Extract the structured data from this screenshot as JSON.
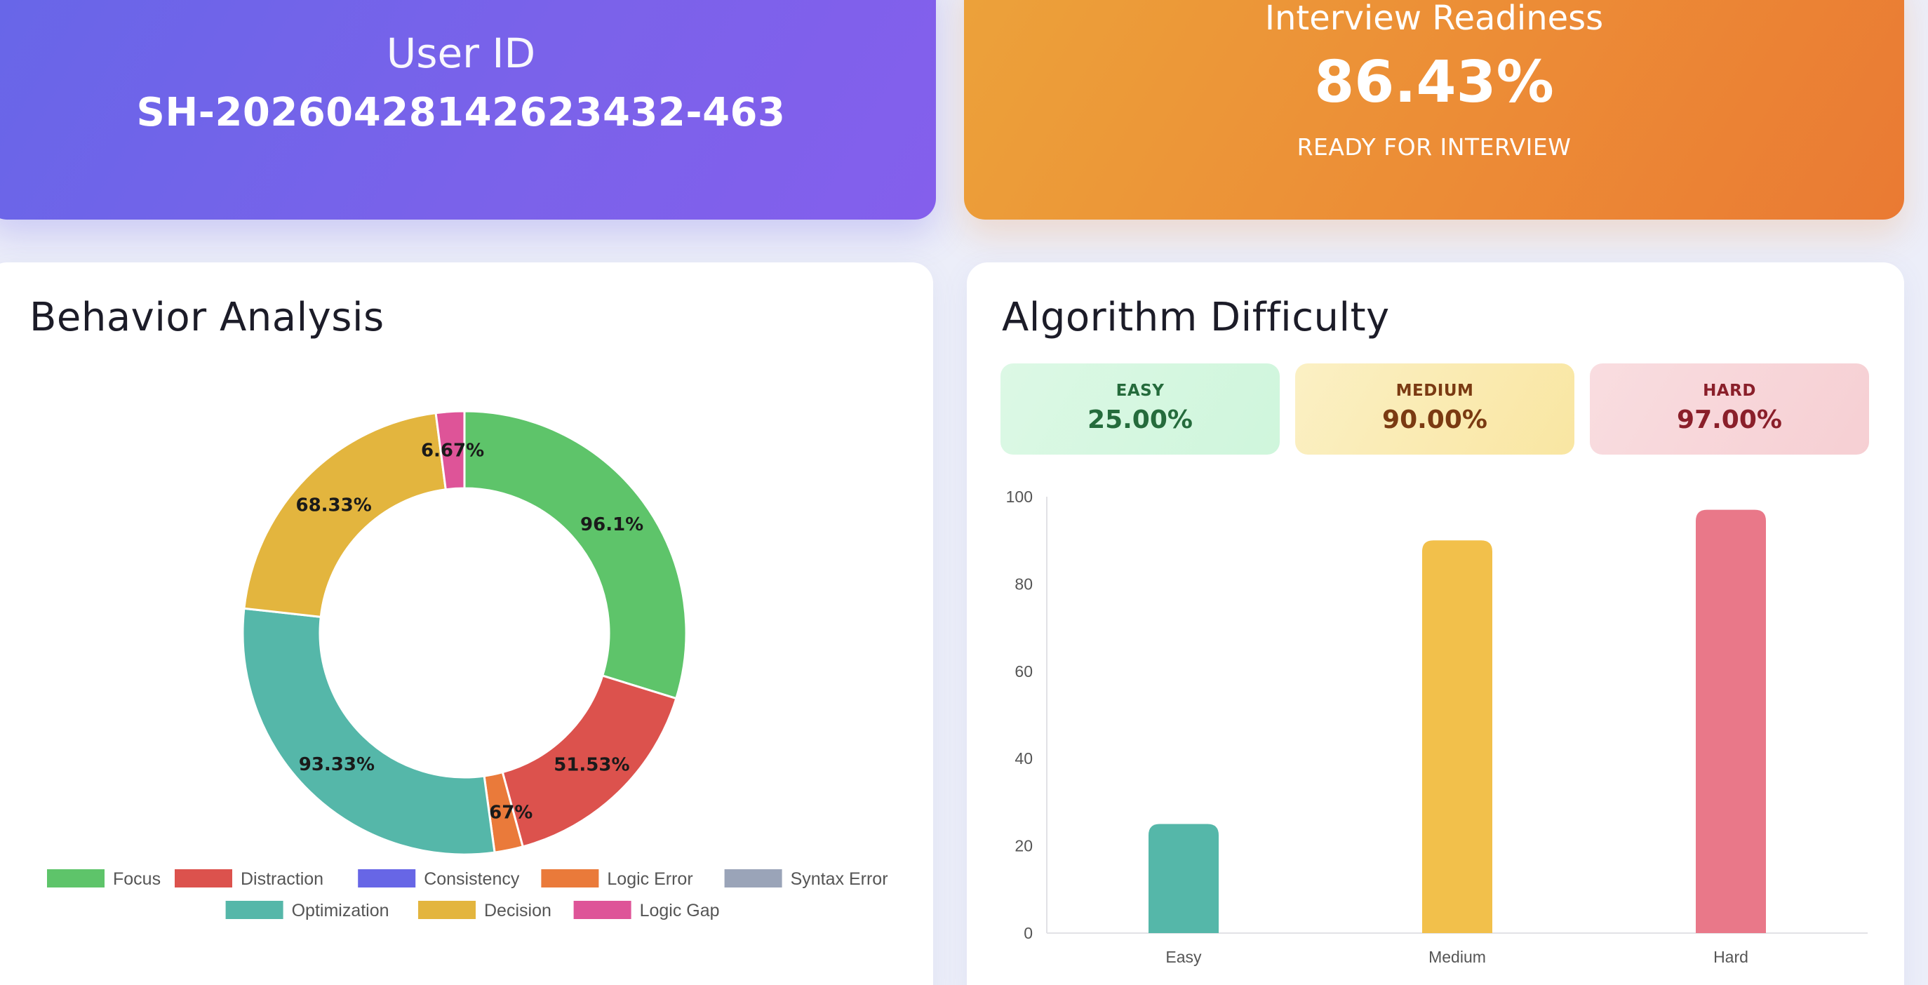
{
  "user_card": {
    "label": "User ID",
    "value": "SH-20260428142623432-463"
  },
  "readiness_card": {
    "label": "Interview Readiness",
    "value": "86.43%",
    "status": "READY FOR INTERVIEW"
  },
  "behavior_panel": {
    "title": "Behavior Analysis"
  },
  "algorithm_panel": {
    "title": "Algorithm Difficulty",
    "easy": {
      "label": "EASY",
      "value": "25.00%"
    },
    "medium": {
      "label": "MEDIUM",
      "value": "90.00%"
    },
    "hard": {
      "label": "HARD",
      "value": "97.00%"
    }
  },
  "chart_data": [
    {
      "type": "pie",
      "variant": "doughnut",
      "title": "Behavior Analysis",
      "legend_position": "bottom",
      "categories": [
        "Focus",
        "Distraction",
        "Consistency",
        "Logic Error",
        "Syntax Error",
        "Optimization",
        "Decision",
        "Logic Gap"
      ],
      "values": [
        96.1,
        51.53,
        0,
        6.67,
        0,
        93.33,
        68.33,
        6.67
      ],
      "labels": [
        "96.1%",
        "51.53%",
        "",
        "6.67%",
        "",
        "93.33%",
        "68.33%",
        "6.67%"
      ],
      "colors": [
        "#5ec46a",
        "#dc524d",
        "#6766e6",
        "#ea7a3a",
        "#9aa4b8",
        "#55b7a9",
        "#e3b53e",
        "#de5498"
      ]
    },
    {
      "type": "bar",
      "title": "Algorithm Difficulty",
      "categories": [
        "Easy",
        "Medium",
        "Hard"
      ],
      "values": [
        25,
        90,
        97
      ],
      "colors": [
        "#55b7a9",
        "#f2c04b",
        "#e97889"
      ],
      "ylim": [
        0,
        100
      ],
      "yticks": [
        0,
        20,
        40,
        60,
        80,
        100
      ],
      "grid": false,
      "xlabel": "",
      "ylabel": ""
    }
  ]
}
